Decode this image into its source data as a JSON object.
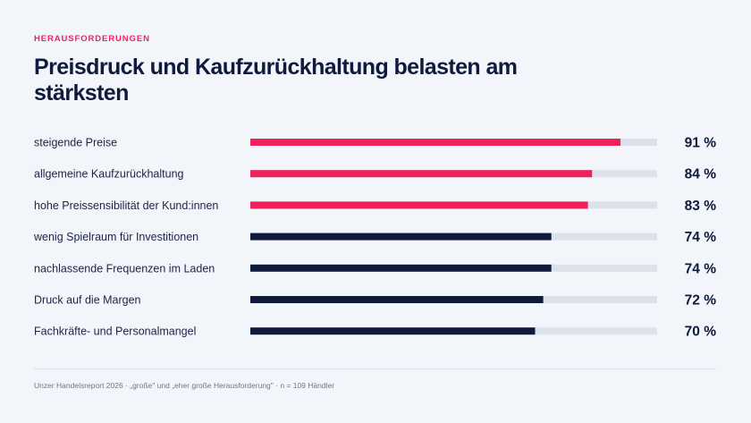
{
  "header": {
    "eyebrow": "HERAUSFORDERUNGEN",
    "title": "Preisdruck und Kaufzurückhaltung belasten am stärksten"
  },
  "footer": {
    "source": "Unzer Handelsreport 2026 · „große\" und „eher große Herausforderung\" · n = 109 Händler"
  },
  "colors": {
    "highlight": "#f0215a",
    "default": "#0f1a3c",
    "track": "#dde2ea"
  },
  "chart_data": {
    "type": "bar",
    "orientation": "horizontal",
    "categories": [
      "steigende Preise",
      "allgemeine Kaufzurückhaltung",
      "hohe Preissensibilität der Kund:innen",
      "wenig Spielraum für Investitionen",
      "nachlassende Frequenzen im Laden",
      "Druck auf die Margen",
      "Fachkräfte- und Personalmangel"
    ],
    "values": [
      91,
      84,
      83,
      74,
      74,
      72,
      70
    ],
    "value_labels": [
      "91 %",
      "84 %",
      "83 %",
      "74 %",
      "74 %",
      "72 %",
      "70 %"
    ],
    "highlighted": [
      true,
      true,
      true,
      false,
      false,
      false,
      false
    ],
    "xlim": [
      0,
      100
    ],
    "unit": "%",
    "grid": false,
    "legend": "none"
  }
}
